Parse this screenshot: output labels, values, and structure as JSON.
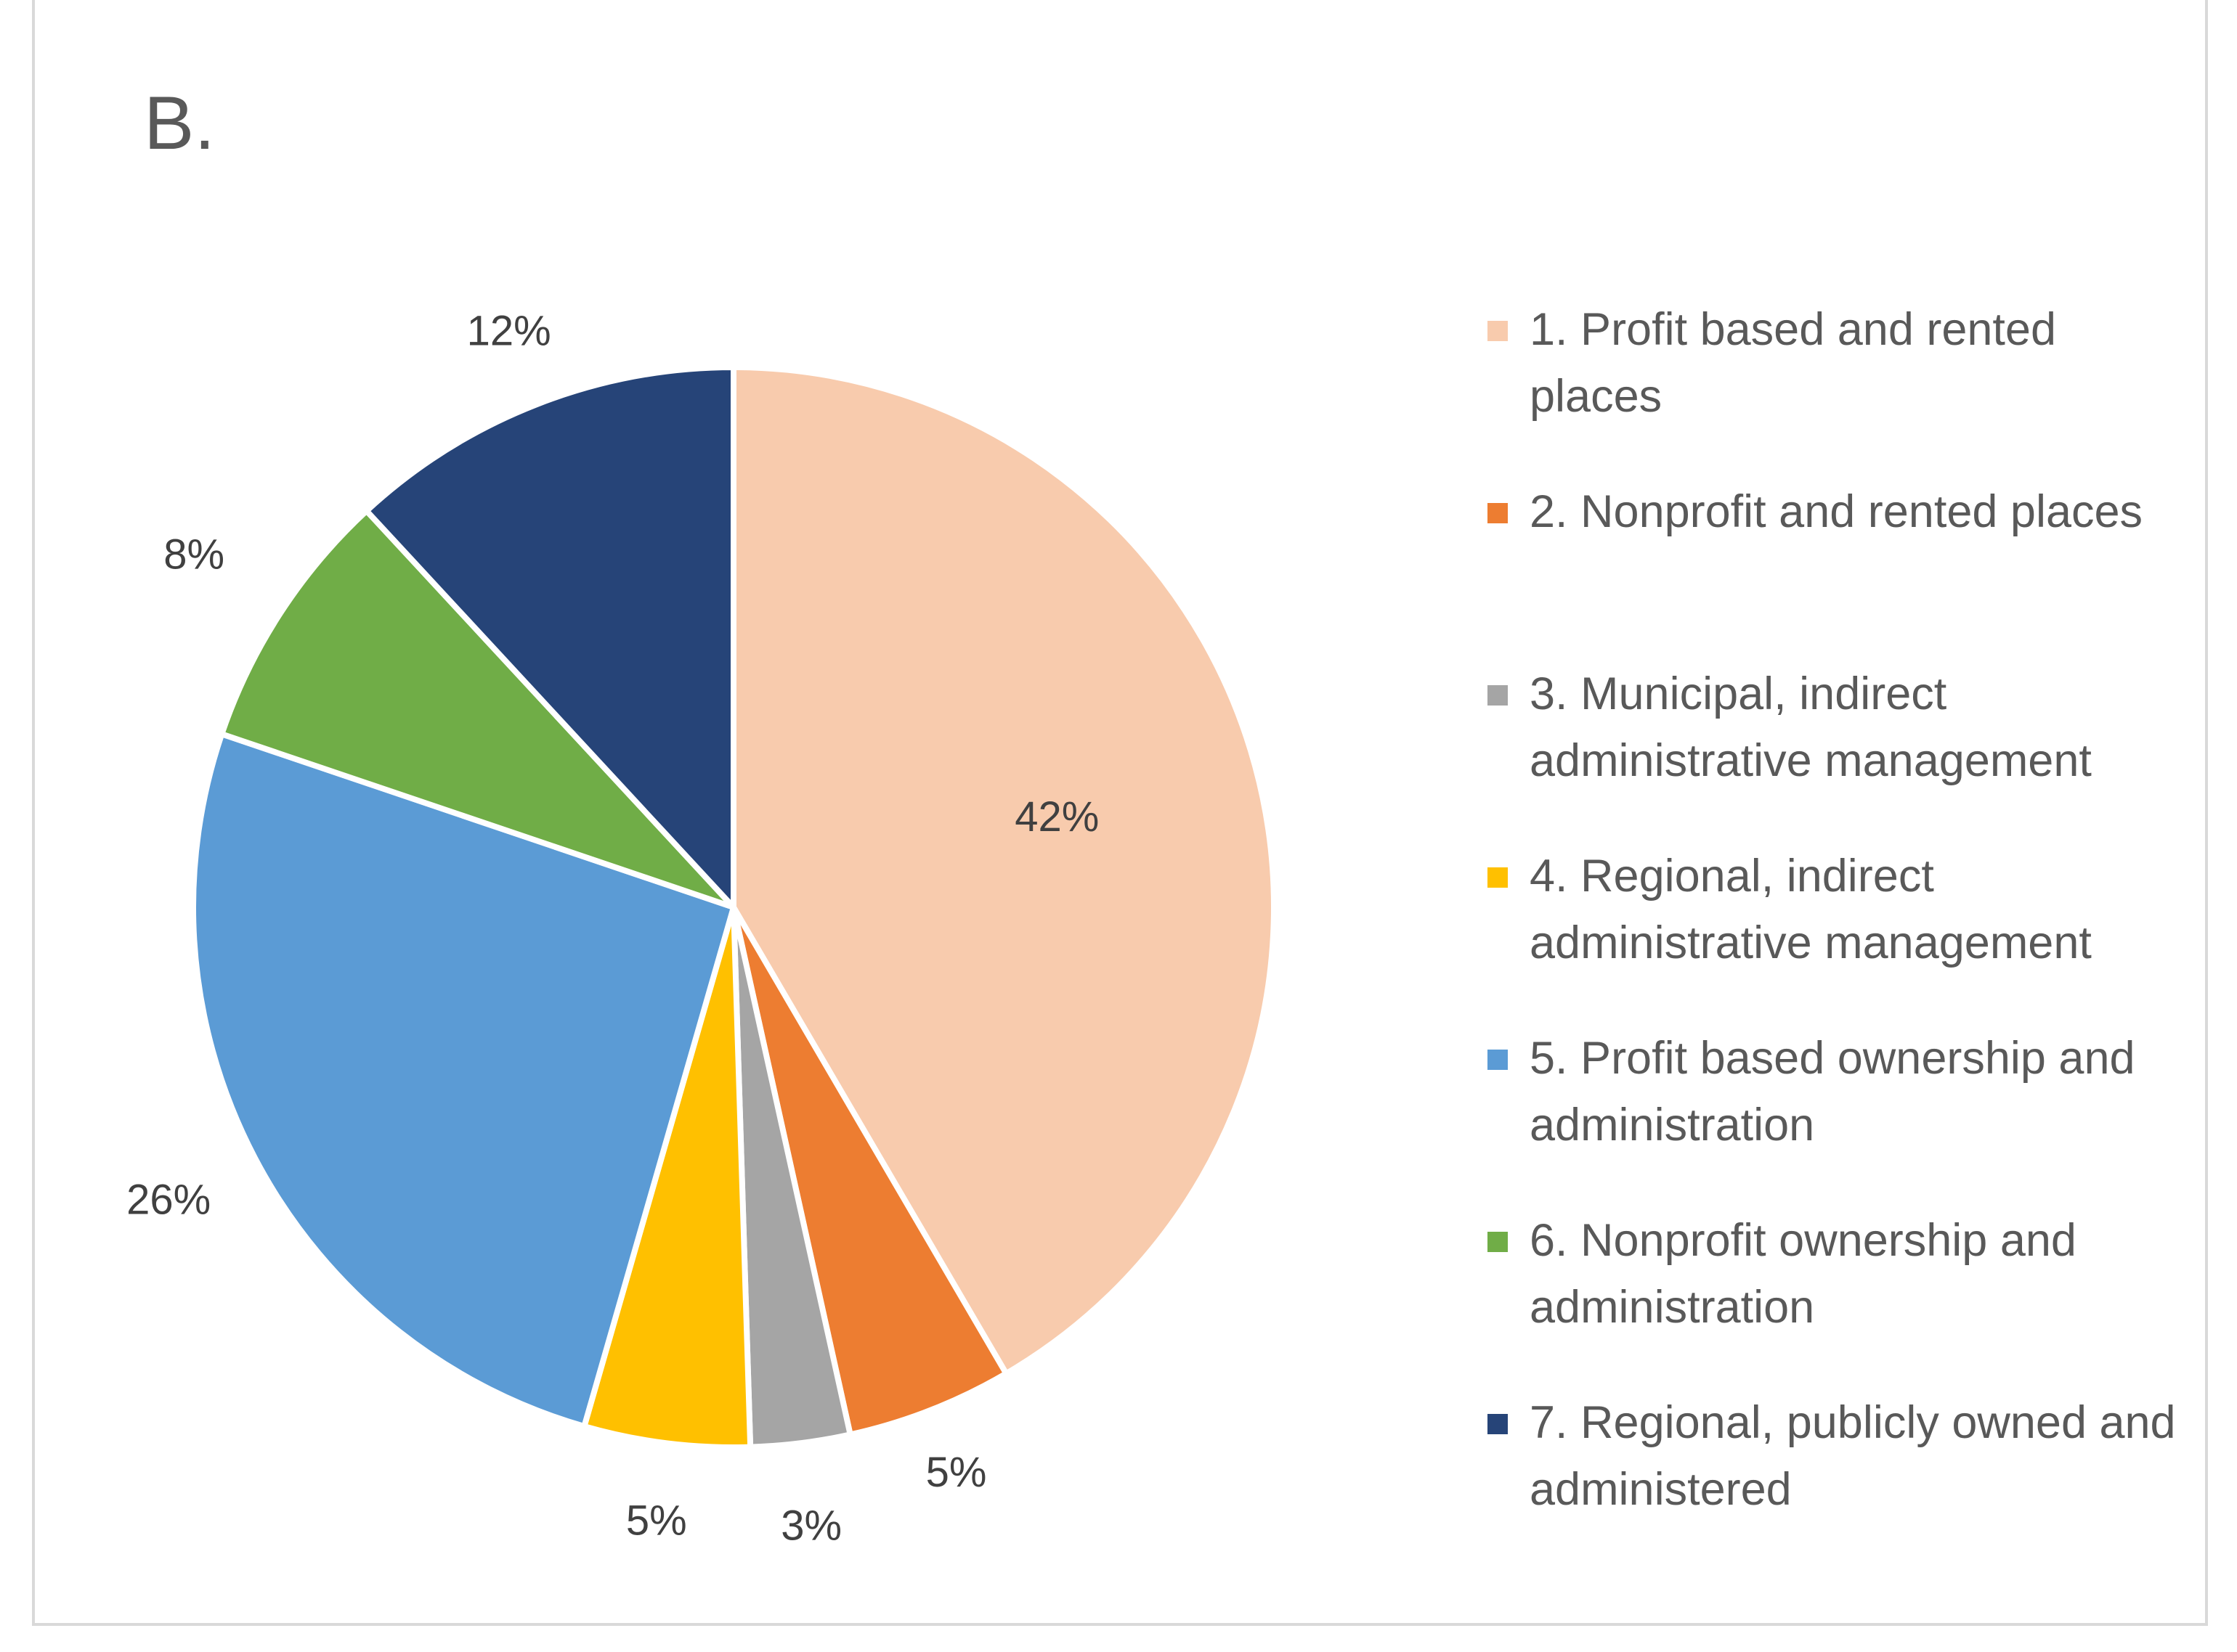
{
  "panel_label": "B.",
  "chart_data": {
    "type": "pie",
    "title": "",
    "slices": [
      {
        "label": "1. Profit based and rented places",
        "value": 42,
        "display": "42%",
        "color": "#F8CBAD"
      },
      {
        "label": "2. Nonprofit and rented places",
        "value": 5,
        "display": "5%",
        "color": "#ED7D31"
      },
      {
        "label": "3. Municipal, indirect administrative management",
        "value": 3,
        "display": "3%",
        "color": "#A5A5A5"
      },
      {
        "label": "4. Regional, indirect administrative management",
        "value": 5,
        "display": "5%",
        "color": "#FFC000"
      },
      {
        "label": "5. Profit based ownership and administration",
        "value": 26,
        "display": "26%",
        "color": "#5B9BD5"
      },
      {
        "label": "6. Nonprofit ownership and administration",
        "value": 8,
        "display": "8%",
        "color": "#70AD47"
      },
      {
        "label": "7. Regional, publicly owned and administered",
        "value": 12,
        "display": "12%",
        "color": "#264478"
      }
    ],
    "legend_position": "right",
    "start_angle": "12 o'clock",
    "direction": "clockwise"
  }
}
